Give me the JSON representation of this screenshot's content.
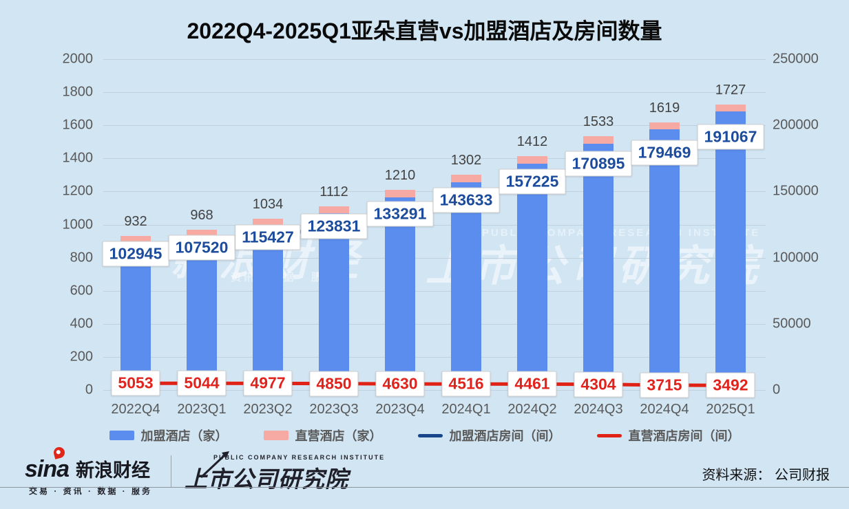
{
  "title": "2022Q4-2025Q1亚朵直营vs加盟酒店及房间数量",
  "chart_data": {
    "type": "bar",
    "subtype": "stacked-bars-with-two-lines",
    "title": "2022Q4-2025Q1亚朵直营vs加盟酒店及房间数量",
    "categories": [
      "2022Q4",
      "2023Q1",
      "2023Q2",
      "2023Q3",
      "2023Q4",
      "2024Q1",
      "2024Q2",
      "2024Q3",
      "2024Q4",
      "2025Q1"
    ],
    "bar_series": [
      {
        "name": "加盟酒店（家）",
        "color": "#5b8def",
        "role": "franchise-hotels",
        "axis": "left"
      },
      {
        "name": "直营酒店（家）",
        "color": "#f6aaa3",
        "role": "direct-hotels",
        "axis": "left"
      }
    ],
    "bar_totals": [
      932,
      968,
      1034,
      1112,
      1210,
      1302,
      1412,
      1533,
      1619,
      1727
    ],
    "direct_cap_display_units": 45,
    "line_series": [
      {
        "name": "加盟酒店房间（间）",
        "color": "#17458b",
        "label_color": "#1d4c9c",
        "axis": "right",
        "values": [
          102945,
          107520,
          115427,
          123831,
          133291,
          143633,
          157225,
          170895,
          179469,
          191067
        ]
      },
      {
        "name": "直营酒店房间（间）",
        "color": "#e02217",
        "label_color": "#e0231c",
        "axis": "right",
        "values": [
          5053,
          5044,
          4977,
          4850,
          4630,
          4516,
          4461,
          4304,
          3715,
          3492
        ]
      }
    ],
    "left_axis": {
      "min": 0,
      "max": 2000,
      "step": 200,
      "ticks": [
        0,
        200,
        400,
        600,
        800,
        1000,
        1200,
        1400,
        1600,
        1800,
        2000
      ]
    },
    "right_axis": {
      "min": 0,
      "max": 250000,
      "step": 50000,
      "ticks": [
        0,
        50000,
        100000,
        150000,
        200000,
        250000
      ]
    },
    "grid": true,
    "legend_position": "bottom"
  },
  "watermark": {
    "left_big": "新浪财经",
    "left_small": "· 资讯 · 数据 · 服务",
    "right_small": "PUBLIC COMPANY RESEARCH INSTITUTE",
    "right_big": "上市公司研究院"
  },
  "footer": {
    "sina": {
      "wordmark": "sina",
      "cn": "新浪财经",
      "tagline": "交易 · 资讯 · 数据 · 服务"
    },
    "pcri": {
      "en": "PUBLIC COMPANY RESEARCH INSTITUTE",
      "cn": "上市公司研究院"
    },
    "source": "资料来源： 公司财报"
  },
  "colors": {
    "background": "#d2e5f3",
    "franchise_bar": "#5b8def",
    "direct_bar": "#f6aaa3",
    "franchise_line": "#17458b",
    "direct_line": "#e02217",
    "axis_text": "#595959",
    "title_text": "#0a0a0a"
  }
}
